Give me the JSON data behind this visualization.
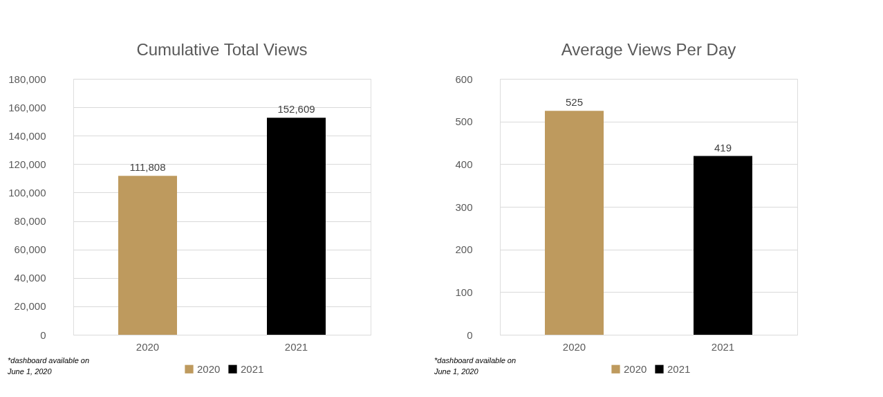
{
  "chart_data": [
    {
      "type": "bar",
      "title": "Cumulative Total Views",
      "categories": [
        "2020",
        "2021"
      ],
      "series": [
        {
          "name": "2020",
          "color": "#be9a5e",
          "values": [
            111808,
            null
          ],
          "value_labels": [
            "111,808",
            null
          ]
        },
        {
          "name": "2021",
          "color": "#000000",
          "values": [
            null,
            152609
          ],
          "value_labels": [
            null,
            "152,609"
          ]
        }
      ],
      "ylim": [
        0,
        180000
      ],
      "yticks": [
        0,
        {
          "value": 20000,
          "label": "20,000"
        },
        {
          "value": 40000,
          "label": "40,000"
        },
        {
          "value": 60000,
          "label": "60,000"
        },
        {
          "value": 80000,
          "label": "80,000"
        },
        {
          "value": 100000,
          "label": "100,000"
        },
        {
          "value": 120000,
          "label": "120,000"
        },
        {
          "value": 140000,
          "label": "140,000"
        },
        {
          "value": 160000,
          "label": "160,000"
        },
        {
          "value": 180000,
          "label": "180,000"
        }
      ],
      "grid": "y",
      "legend": "bottom",
      "annotations": [
        "*dashboard available on June 1, 2020"
      ]
    },
    {
      "type": "bar",
      "title": "Average Views Per Day",
      "categories": [
        "2020",
        "2021"
      ],
      "series": [
        {
          "name": "2020",
          "color": "#be9a5e",
          "values": [
            525,
            null
          ]
        },
        {
          "name": "2021",
          "color": "#000000",
          "values": [
            null,
            419
          ]
        }
      ],
      "ylim": [
        0,
        600
      ],
      "yticks": [
        0,
        100,
        200,
        300,
        400,
        500,
        600
      ],
      "grid": "y",
      "legend": "bottom",
      "data_labels": true,
      "annotations": [
        "*dashboard available on June 1, 2020"
      ]
    }
  ]
}
